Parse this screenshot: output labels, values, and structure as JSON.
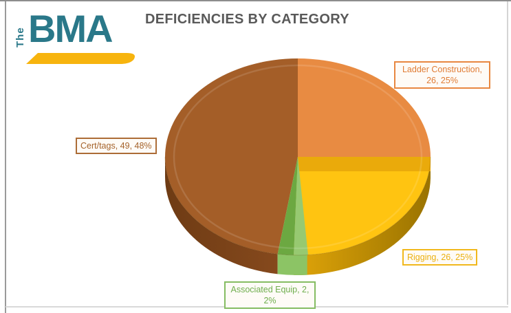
{
  "logo": {
    "the": "The",
    "bma": "BMA",
    "teal": "#2A7889",
    "gold": "#F7B40E"
  },
  "header": {
    "title": "DEFICIENCIES BY CATEGORY",
    "color": "#595959"
  },
  "chart_data": {
    "type": "pie",
    "style": "3d",
    "title": "DEFICIENCIES BY CATEGORY",
    "legend_position": "none",
    "start_angle": "12-o-clock, clockwise",
    "labels_format": "category, value, percent",
    "slices": [
      {
        "label": "Ladder Construction",
        "value": 26,
        "percent": "25%",
        "color": "#E88B42",
        "rim": "#C06A2B",
        "callout": {
          "lines": [
            "Ladder Construction,",
            "26, 25%"
          ],
          "color": "#E07C35",
          "border": "#E88740"
        }
      },
      {
        "label": "Rigging",
        "value": 26,
        "percent": "25%",
        "color": "#FFC411",
        "rim": "#D89F08",
        "rim_dark": "#9A7300",
        "bevel": "#EAAA0B",
        "callout": {
          "lines": [
            "Rigging, 26, 25%"
          ],
          "color": "#EBB00F",
          "border": "#F1B81C"
        }
      },
      {
        "label": "Associated Equip",
        "value": 2,
        "percent": "2%",
        "color": "#6CA841",
        "rim": "#8CC465",
        "bevel": "#97C971",
        "callout": {
          "lines": [
            "Associated Equip, 2,",
            "2%"
          ],
          "color": "#6FAE4E",
          "border": "#85BC62"
        }
      },
      {
        "label": "Cert/tags",
        "value": 49,
        "percent": "48%",
        "color": "#A45E28",
        "rim": "#8C4D1F",
        "rim_dark": "#6E3B14",
        "callout": {
          "lines": [
            "Cert/tags, 49, 48%"
          ],
          "color": "#A5632B",
          "border": "#AC6C36"
        }
      }
    ]
  }
}
